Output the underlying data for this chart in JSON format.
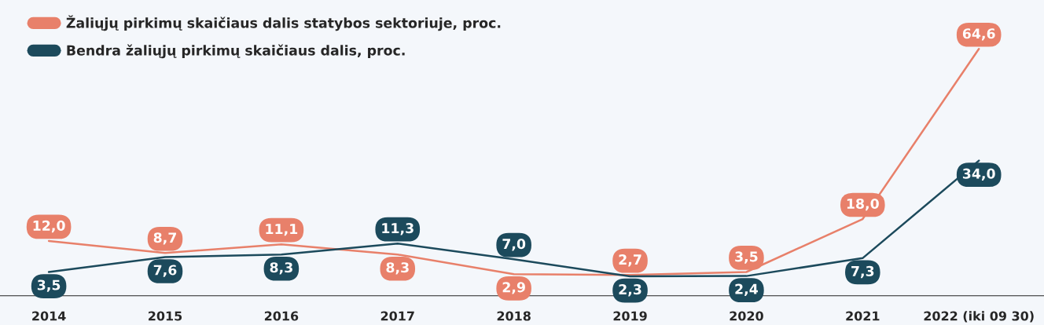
{
  "chart_data": {
    "type": "line",
    "categories": [
      "2014",
      "2015",
      "2016",
      "2017",
      "2018",
      "2019",
      "2020",
      "2021",
      "2022 (iki 09 30)"
    ],
    "series": [
      {
        "name": "Žaliųjų pirkimų skaičiaus dalis statybos sektoriuje, proc.",
        "color": "#e8806a",
        "values": [
          12.0,
          8.7,
          11.1,
          8.3,
          2.9,
          2.7,
          3.5,
          18.0,
          64.6
        ],
        "value_labels": [
          "12,0",
          "8,7",
          "11,1",
          "8,3",
          "2,9",
          "2,7",
          "3,5",
          "18,0",
          "64,6"
        ]
      },
      {
        "name": "Bendra žaliųjų pirkimų skaičiaus dalis, proc.",
        "color": "#1c4a5c",
        "values": [
          3.5,
          7.6,
          8.3,
          11.3,
          7.0,
          2.3,
          2.4,
          7.3,
          34.0
        ],
        "value_labels": [
          "3,5",
          "7,6",
          "8,3",
          "11,3",
          "7,0",
          "2,3",
          "2,4",
          "7,3",
          "34,0"
        ]
      }
    ],
    "ylim": [
      -3,
      78
    ],
    "legend": "top left",
    "grid": false,
    "line_style": "solid"
  }
}
